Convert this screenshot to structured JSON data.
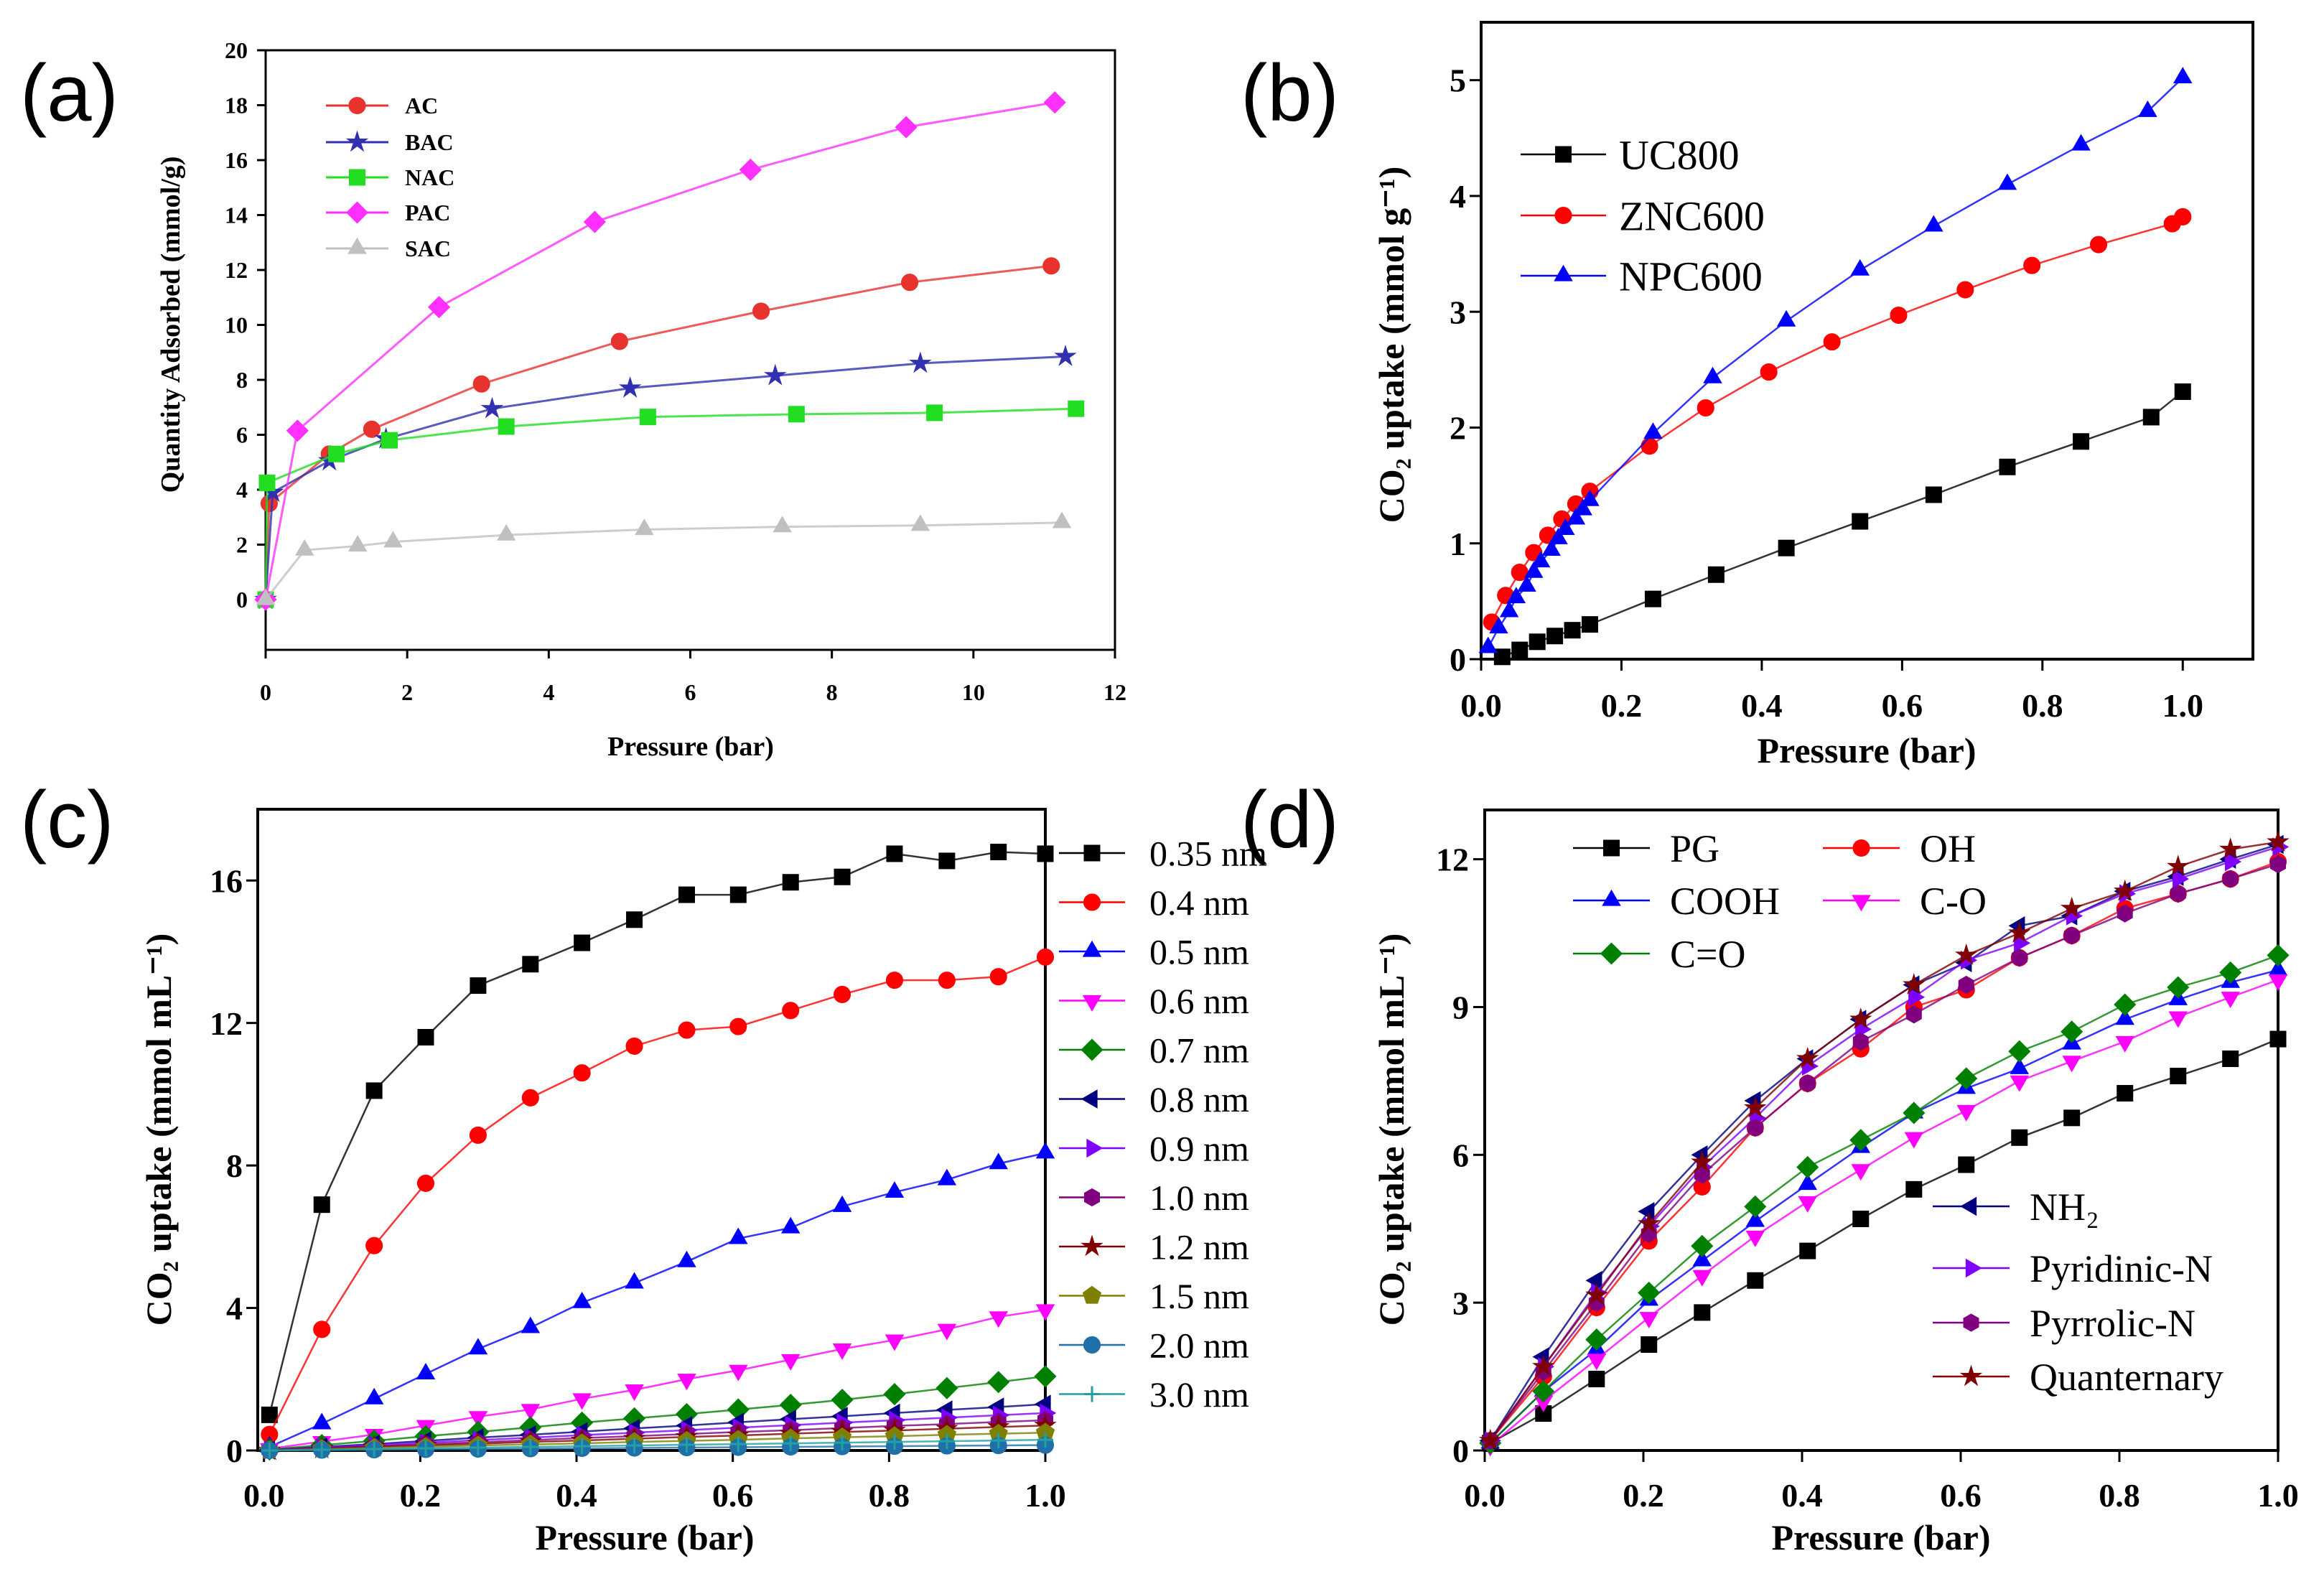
{
  "chart_data": [
    {
      "panel": "(a)",
      "type": "line",
      "xlabel": "Pressure (bar)",
      "ylabel": "Quantity Adsorbed (mmol/g)",
      "xlim": [
        0,
        12
      ],
      "ylim": [
        -1.83,
        20
      ],
      "xticks": [
        0,
        2,
        4,
        6,
        8,
        10,
        12
      ],
      "xtick_labels": [
        "0",
        "2",
        "4",
        "6",
        "8",
        "10",
        "12"
      ],
      "yticks": [
        0,
        2,
        4,
        6,
        8,
        10,
        12,
        14,
        16,
        18,
        20
      ],
      "ytick_labels": [
        "0",
        "2",
        "4",
        "6",
        "8",
        "10",
        "12",
        "14",
        "16",
        "18",
        "20"
      ],
      "legend_position": "top-left",
      "series": [
        {
          "name": "AC",
          "color": "#e8322e",
          "marker": "circle",
          "x": [
            0,
            0.05,
            0.9,
            1.5,
            3.05,
            5.0,
            7.0,
            9.1,
            11.1
          ],
          "y": [
            0,
            3.5,
            5.3,
            6.2,
            7.85,
            9.4,
            10.5,
            11.55,
            12.15
          ]
        },
        {
          "name": "BAC",
          "color": "#3030b0",
          "marker": "star",
          "x": [
            0,
            0.1,
            0.9,
            1.7,
            3.2,
            5.15,
            7.2,
            9.25,
            11.3
          ],
          "y": [
            0,
            3.9,
            5.05,
            5.85,
            6.95,
            7.7,
            8.15,
            8.6,
            8.85
          ]
        },
        {
          "name": "NAC",
          "color": "#22dd22",
          "marker": "square",
          "x": [
            0,
            0.02,
            1.0,
            1.75,
            3.4,
            5.4,
            7.5,
            9.45,
            11.45
          ],
          "y": [
            0,
            4.25,
            5.3,
            5.8,
            6.3,
            6.65,
            6.75,
            6.8,
            6.95
          ]
        },
        {
          "name": "PAC",
          "color": "#ff30ff",
          "marker": "diamond",
          "x": [
            0,
            0.45,
            2.45,
            4.65,
            6.85,
            9.05,
            11.15
          ],
          "y": [
            0,
            6.15,
            10.65,
            13.75,
            15.65,
            17.2,
            18.1
          ]
        },
        {
          "name": "SAC",
          "color": "#c0c0c0",
          "marker": "triangle-up",
          "x": [
            0,
            0.55,
            1.3,
            1.8,
            3.4,
            5.35,
            7.3,
            9.25,
            11.25
          ],
          "y": [
            0,
            1.8,
            1.95,
            2.1,
            2.35,
            2.55,
            2.65,
            2.7,
            2.8
          ]
        }
      ]
    },
    {
      "panel": "(b)",
      "type": "line",
      "xlabel": "Pressure (bar)",
      "ylabel": "CO₂ uptake (mmol g⁻¹)",
      "xlim": [
        0,
        1.1
      ],
      "ylim": [
        0,
        5.5
      ],
      "xticks": [
        0,
        0.2,
        0.4,
        0.6,
        0.8,
        1.0
      ],
      "xtick_labels": [
        "0.0",
        "0.2",
        "0.4",
        "0.6",
        "0.8",
        "1.0"
      ],
      "yticks": [
        0,
        1,
        2,
        3,
        4,
        5
      ],
      "ytick_labels": [
        "0",
        "1",
        "2",
        "3",
        "4",
        "5"
      ],
      "legend_position": "top-left",
      "series": [
        {
          "name": "UC800",
          "color": "#000000",
          "marker": "square",
          "x": [
            0.03,
            0.055,
            0.08,
            0.105,
            0.13,
            0.155,
            0.245,
            0.335,
            0.435,
            0.54,
            0.645,
            0.75,
            0.855,
            0.955,
            1.0
          ],
          "y": [
            0.02,
            0.08,
            0.15,
            0.2,
            0.25,
            0.3,
            0.52,
            0.73,
            0.96,
            1.19,
            1.42,
            1.66,
            1.88,
            2.09,
            2.31
          ]
        },
        {
          "name": "ZNC600",
          "color": "#ff0000",
          "marker": "circle",
          "x": [
            0.015,
            0.035,
            0.055,
            0.075,
            0.095,
            0.115,
            0.135,
            0.155,
            0.24,
            0.32,
            0.41,
            0.5,
            0.595,
            0.69,
            0.785,
            0.88,
            0.985,
            1.0
          ],
          "y": [
            0.32,
            0.55,
            0.75,
            0.92,
            1.07,
            1.21,
            1.34,
            1.45,
            1.84,
            2.17,
            2.48,
            2.74,
            2.97,
            3.19,
            3.4,
            3.58,
            3.76,
            3.82
          ]
        },
        {
          "name": "NPC600",
          "color": "#0000ff",
          "marker": "triangle-up",
          "x": [
            0.01,
            0.025,
            0.04,
            0.05,
            0.065,
            0.075,
            0.085,
            0.1,
            0.11,
            0.12,
            0.135,
            0.145,
            0.155,
            0.245,
            0.33,
            0.435,
            0.54,
            0.645,
            0.75,
            0.855,
            0.95,
            1.0
          ],
          "y": [
            0.1,
            0.27,
            0.41,
            0.53,
            0.63,
            0.75,
            0.84,
            0.94,
            1.04,
            1.12,
            1.21,
            1.29,
            1.37,
            1.95,
            2.43,
            2.92,
            3.36,
            3.74,
            4.1,
            4.44,
            4.73,
            5.02
          ]
        }
      ]
    },
    {
      "panel": "(c)",
      "type": "line",
      "xlabel": "Pressure (bar)",
      "ylabel": "CO₂ uptake (mmol mL⁻¹)",
      "xlim": [
        -0.008,
        1.0
      ],
      "ylim": [
        0,
        18
      ],
      "xticks": [
        0,
        0.2,
        0.4,
        0.6,
        0.8,
        1.0
      ],
      "xtick_labels": [
        "0.0",
        "0.2",
        "0.4",
        "0.6",
        "0.8",
        "1.0"
      ],
      "yticks": [
        0,
        4,
        8,
        12,
        16
      ],
      "ytick_labels": [
        "0",
        "4",
        "8",
        "12",
        "16"
      ],
      "legend_position": "outside-right",
      "x": [
        0.007,
        0.074,
        0.141,
        0.207,
        0.274,
        0.341,
        0.407,
        0.474,
        0.541,
        0.607,
        0.674,
        0.74,
        0.807,
        0.874,
        0.94,
        1.0
      ],
      "series": [
        {
          "name": "0.35 nm",
          "color": "#000000",
          "marker": "square",
          "y": [
            1.0,
            6.9,
            10.1,
            11.6,
            13.05,
            13.65,
            14.25,
            14.9,
            15.6,
            15.6,
            15.95,
            16.1,
            16.75,
            16.55,
            16.8,
            16.75
          ]
        },
        {
          "name": "0.4 nm",
          "color": "#ff0000",
          "marker": "circle",
          "y": [
            0.45,
            3.4,
            5.75,
            7.5,
            8.85,
            9.9,
            10.6,
            11.35,
            11.8,
            11.9,
            12.35,
            12.8,
            13.2,
            13.2,
            13.3,
            13.85
          ]
        },
        {
          "name": "0.5 nm",
          "color": "#0000ff",
          "marker": "triangle-up",
          "y": [
            0.1,
            0.75,
            1.45,
            2.15,
            2.85,
            3.45,
            4.15,
            4.7,
            5.3,
            5.95,
            6.25,
            6.85,
            7.25,
            7.6,
            8.05,
            8.35
          ]
        },
        {
          "name": "0.6 nm",
          "color": "#ff00ff",
          "marker": "triangle-down",
          "y": [
            0.05,
            0.25,
            0.45,
            0.7,
            0.95,
            1.15,
            1.45,
            1.7,
            2.0,
            2.25,
            2.55,
            2.85,
            3.1,
            3.4,
            3.75,
            3.95
          ]
        },
        {
          "name": "0.7 nm",
          "color": "#008000",
          "marker": "diamond",
          "y": [
            0.03,
            0.15,
            0.27,
            0.4,
            0.52,
            0.65,
            0.78,
            0.9,
            1.02,
            1.15,
            1.28,
            1.42,
            1.58,
            1.75,
            1.92,
            2.08
          ]
        },
        {
          "name": "0.8 nm",
          "color": "#000080",
          "marker": "triangle-left",
          "y": [
            0.01,
            0.1,
            0.18,
            0.27,
            0.36,
            0.44,
            0.53,
            0.62,
            0.7,
            0.79,
            0.88,
            0.96,
            1.05,
            1.14,
            1.22,
            1.3
          ]
        },
        {
          "name": "0.9 nm",
          "color": "#8000ff",
          "marker": "triangle-right",
          "y": [
            0.01,
            0.08,
            0.15,
            0.22,
            0.29,
            0.36,
            0.43,
            0.5,
            0.57,
            0.64,
            0.71,
            0.78,
            0.85,
            0.92,
            0.99,
            1.05
          ]
        },
        {
          "name": "1.0 nm",
          "color": "#800080",
          "marker": "hexagon",
          "y": [
            0.01,
            0.06,
            0.12,
            0.18,
            0.23,
            0.29,
            0.35,
            0.4,
            0.46,
            0.52,
            0.57,
            0.63,
            0.69,
            0.74,
            0.8,
            0.85
          ]
        },
        {
          "name": "1.2 nm",
          "color": "#800000",
          "marker": "star",
          "y": [
            0,
            0.05,
            0.1,
            0.14,
            0.19,
            0.24,
            0.28,
            0.33,
            0.38,
            0.42,
            0.47,
            0.52,
            0.56,
            0.61,
            0.66,
            0.7
          ]
        },
        {
          "name": "1.5 nm",
          "color": "#808000",
          "marker": "pentagon",
          "y": [
            0,
            0.04,
            0.07,
            0.1,
            0.14,
            0.17,
            0.2,
            0.24,
            0.27,
            0.3,
            0.34,
            0.37,
            0.4,
            0.44,
            0.47,
            0.5
          ]
        },
        {
          "name": "2.0 nm",
          "color": "#1f6fa8",
          "marker": "circle",
          "y": [
            0,
            0.01,
            0.02,
            0.03,
            0.04,
            0.05,
            0.06,
            0.07,
            0.08,
            0.09,
            0.1,
            0.11,
            0.12,
            0.13,
            0.14,
            0.15
          ]
        },
        {
          "name": "3.0 nm",
          "color": "#20a0a0",
          "marker": "plus",
          "y": [
            0,
            0.02,
            0.04,
            0.06,
            0.08,
            0.1,
            0.12,
            0.14,
            0.16,
            0.18,
            0.2,
            0.22,
            0.24,
            0.26,
            0.28,
            0.3
          ]
        }
      ]
    },
    {
      "panel": "(d)",
      "type": "line",
      "xlabel": "Pressure (bar)",
      "ylabel": "CO₂ uptake (mmol mL⁻¹)",
      "xlim": [
        0,
        1.0
      ],
      "ylim": [
        0,
        13
      ],
      "xticks": [
        0,
        0.2,
        0.4,
        0.6,
        0.8,
        1.0
      ],
      "xtick_labels": [
        "0.0",
        "0.2",
        "0.4",
        "0.6",
        "0.8",
        "1.0"
      ],
      "yticks": [
        0,
        3,
        6,
        9,
        12
      ],
      "ytick_labels": [
        "0",
        "3",
        "6",
        "9",
        "12"
      ],
      "legend_position": "top-left and bottom-right",
      "x": [
        0.007,
        0.074,
        0.141,
        0.207,
        0.274,
        0.341,
        0.407,
        0.474,
        0.541,
        0.607,
        0.674,
        0.74,
        0.807,
        0.874,
        0.94,
        1.0
      ],
      "series": [
        {
          "name": "PG",
          "color": "#000000",
          "marker": "square",
          "y": [
            0.15,
            0.75,
            1.45,
            2.15,
            2.8,
            3.45,
            4.05,
            4.7,
            5.3,
            5.8,
            6.35,
            6.75,
            7.25,
            7.6,
            7.95,
            8.35
          ]
        },
        {
          "name": "OH",
          "color": "#ff0000",
          "marker": "circle",
          "y": [
            0.2,
            1.5,
            2.9,
            4.25,
            5.35,
            6.55,
            7.45,
            8.15,
            9.0,
            9.35,
            10.0,
            10.45,
            11.0,
            11.3,
            11.6,
            11.95
          ]
        },
        {
          "name": "COOH",
          "color": "#0000ff",
          "marker": "triangle-up",
          "y": [
            0.15,
            1.2,
            2.05,
            3.05,
            3.85,
            4.65,
            5.4,
            6.15,
            6.85,
            7.35,
            7.75,
            8.25,
            8.75,
            9.15,
            9.5,
            9.75
          ]
        },
        {
          "name": "C-O",
          "color": "#ff00ff",
          "marker": "triangle-down",
          "y": [
            0.1,
            1.0,
            1.85,
            2.7,
            3.55,
            4.35,
            5.05,
            5.7,
            6.35,
            6.9,
            7.5,
            7.9,
            8.3,
            8.8,
            9.2,
            9.55
          ]
        },
        {
          "name": "C=O",
          "color": "#008000",
          "marker": "diamond",
          "y": [
            0.15,
            1.2,
            2.25,
            3.2,
            4.15,
            4.95,
            5.75,
            6.3,
            6.85,
            7.55,
            8.1,
            8.5,
            9.05,
            9.4,
            9.7,
            10.05
          ]
        },
        {
          "name": "NH₂",
          "color": "#000080",
          "marker": "triangle-left",
          "y": [
            0.2,
            1.9,
            3.45,
            4.85,
            6.0,
            7.1,
            7.95,
            8.75,
            9.45,
            9.9,
            10.65,
            10.85,
            11.35,
            11.65,
            12.0,
            12.3
          ]
        },
        {
          "name": "Pyridinic-N",
          "color": "#8000ff",
          "marker": "triangle-right",
          "y": [
            0.2,
            1.7,
            3.2,
            4.55,
            5.75,
            6.75,
            7.8,
            8.55,
            9.2,
            9.95,
            10.3,
            10.85,
            11.3,
            11.6,
            11.95,
            12.25
          ]
        },
        {
          "name": "Pyrrolic-N",
          "color": "#800080",
          "marker": "hexagon",
          "y": [
            0.2,
            1.6,
            3.0,
            4.4,
            5.6,
            6.55,
            7.45,
            8.3,
            8.85,
            9.45,
            10.0,
            10.45,
            10.9,
            11.3,
            11.6,
            11.9
          ]
        },
        {
          "name": "Quanternary",
          "color": "#800000",
          "marker": "star",
          "y": [
            0.2,
            1.7,
            3.15,
            4.6,
            5.85,
            6.95,
            7.95,
            8.75,
            9.45,
            10.05,
            10.5,
            11.0,
            11.35,
            11.85,
            12.2,
            12.35
          ]
        }
      ]
    }
  ]
}
